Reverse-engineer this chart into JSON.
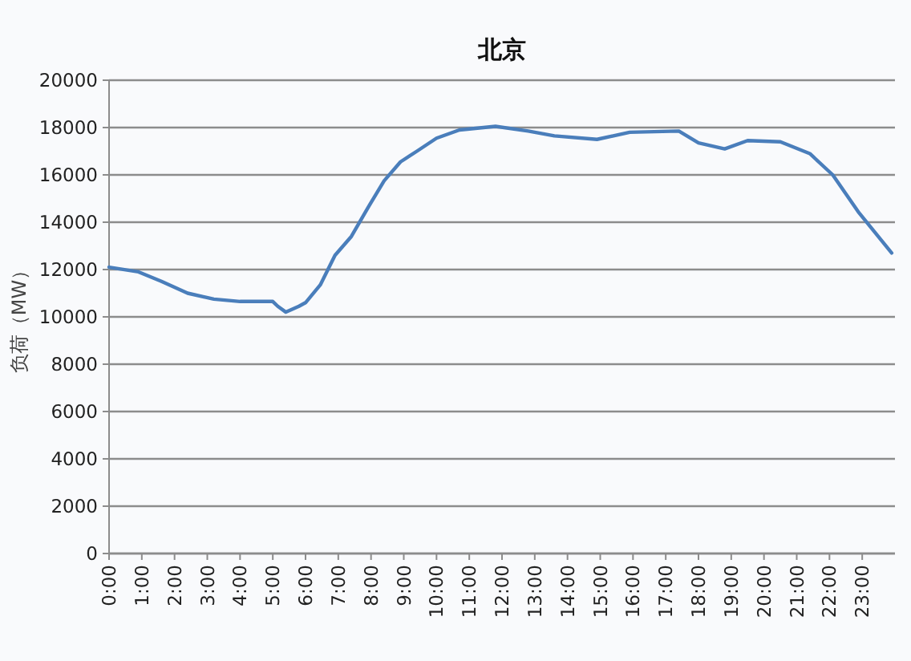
{
  "chart_data": {
    "type": "line",
    "title": "北京",
    "ylabel": "负荷（MW）",
    "xlim": [
      0,
      24
    ],
    "xticks": [
      {
        "value": 0,
        "label": "0:00"
      },
      {
        "value": 1,
        "label": "1:00"
      },
      {
        "value": 2,
        "label": "2:00"
      },
      {
        "value": 3,
        "label": "3:00"
      },
      {
        "value": 4,
        "label": "4:00"
      },
      {
        "value": 5,
        "label": "5:00"
      },
      {
        "value": 6,
        "label": "6:00"
      },
      {
        "value": 7,
        "label": "7:00"
      },
      {
        "value": 8,
        "label": "8:00"
      },
      {
        "value": 9,
        "label": "9:00"
      },
      {
        "value": 10,
        "label": "10:00"
      },
      {
        "value": 11,
        "label": "11:00"
      },
      {
        "value": 12,
        "label": "12:00"
      },
      {
        "value": 13,
        "label": "13:00"
      },
      {
        "value": 14,
        "label": "14:00"
      },
      {
        "value": 15,
        "label": "15:00"
      },
      {
        "value": 16,
        "label": "16:00"
      },
      {
        "value": 17,
        "label": "17:00"
      },
      {
        "value": 18,
        "label": "18:00"
      },
      {
        "value": 19,
        "label": "19:00"
      },
      {
        "value": 20,
        "label": "20:00"
      },
      {
        "value": 21,
        "label": "21:00"
      },
      {
        "value": 22,
        "label": "22:00"
      },
      {
        "value": 23,
        "label": "23:00"
      }
    ],
    "ylim": [
      0,
      20000
    ],
    "yticks": [
      0,
      2000,
      4000,
      6000,
      8000,
      10000,
      12000,
      14000,
      16000,
      18000,
      20000
    ],
    "grid": "y",
    "marker": "none",
    "line_style": "solid",
    "x": [
      0,
      0.9,
      1.6,
      2.4,
      3.2,
      4.0,
      5.0,
      5.15,
      5.4,
      5.8,
      6.0,
      6.45,
      6.9,
      7.4,
      7.9,
      8.4,
      8.9,
      9.4,
      10.0,
      10.7,
      11.8,
      12.8,
      13.6,
      14.9,
      15.9,
      17.4,
      18.0,
      18.8,
      19.5,
      20.5,
      21.4,
      22.1,
      22.9,
      23.9
    ],
    "series": [
      {
        "color": "#4a7ebb",
        "values": [
          12100,
          11900,
          11500,
          11000,
          10750,
          10650,
          10650,
          10450,
          10200,
          10450,
          10600,
          11350,
          12600,
          13400,
          14600,
          15750,
          16550,
          17000,
          17550,
          17900,
          18050,
          17850,
          17650,
          17500,
          17800,
          17850,
          17350,
          17100,
          17450,
          17400,
          16900,
          16000,
          14400,
          12700
        ]
      }
    ]
  }
}
